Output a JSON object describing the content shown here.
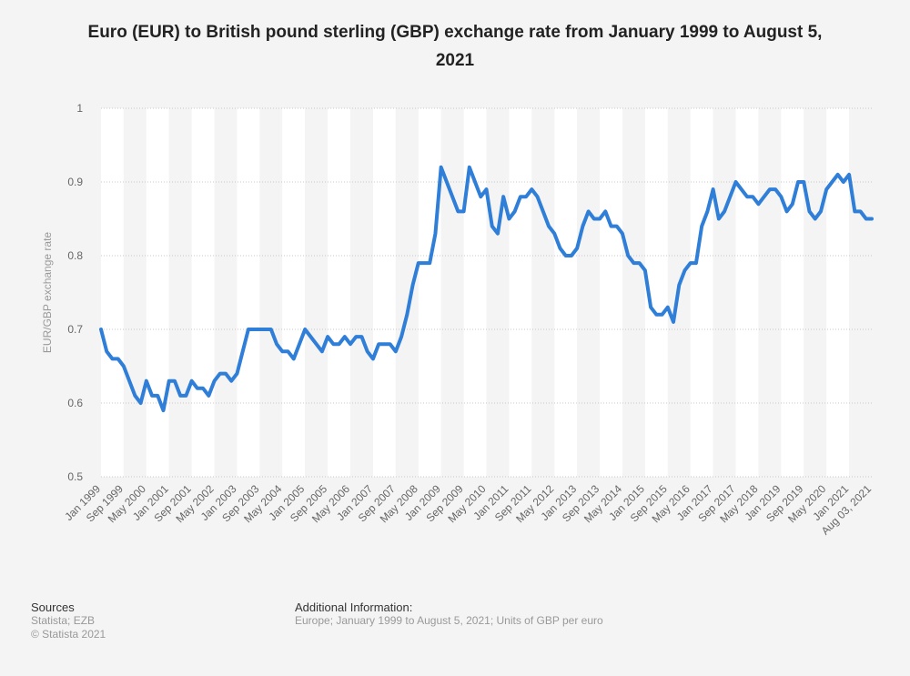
{
  "chart_data": {
    "type": "line",
    "title": "Euro (EUR) to British pound sterling (GBP) exchange rate from January 1999 to August 5, 2021",
    "y_label": "EUR/GBP exchange rate",
    "color": "#2f7ed8",
    "ylim": [
      0.5,
      1
    ],
    "yticks": [
      0.5,
      0.6,
      0.7,
      0.8,
      0.9,
      1
    ],
    "grid": true,
    "categories": [
      "Jan 1999",
      null,
      null,
      null,
      "Sep 1999",
      null,
      null,
      null,
      "May 2000",
      null,
      null,
      null,
      "Jan 2001",
      null,
      null,
      null,
      "Sep 2001",
      null,
      null,
      null,
      "May 2002",
      null,
      null,
      null,
      "Jan 2003",
      null,
      null,
      null,
      "Sep 2003",
      null,
      null,
      null,
      "May 2004",
      null,
      null,
      null,
      "Jan 2005",
      null,
      null,
      null,
      "Sep 2005",
      null,
      null,
      null,
      "May 2006",
      null,
      null,
      null,
      "Jan 2007",
      null,
      null,
      null,
      "Sep 2007",
      null,
      null,
      null,
      "May 2008",
      null,
      null,
      null,
      "Jan 2009",
      null,
      null,
      null,
      "Sep 2009",
      null,
      null,
      null,
      "May 2010",
      null,
      null,
      null,
      "Jan 2011",
      null,
      null,
      null,
      "Sep 2011",
      null,
      null,
      null,
      "May 2012",
      null,
      null,
      null,
      "Jan 2013",
      null,
      null,
      null,
      "Sep 2013",
      null,
      null,
      null,
      "May 2014",
      null,
      null,
      null,
      "Jan 2015",
      null,
      null,
      null,
      "Sep 2015",
      null,
      null,
      null,
      "May 2016",
      null,
      null,
      null,
      "Jan 2017",
      null,
      null,
      null,
      "Sep 2017",
      null,
      null,
      null,
      "May 2018",
      null,
      null,
      null,
      "Jan 2019",
      null,
      null,
      null,
      "Sep 2019",
      null,
      null,
      null,
      "May 2020",
      null,
      null,
      null,
      "Jan 2021",
      null,
      null,
      null,
      "Aug 03, 2021"
    ],
    "values": [
      0.7,
      0.67,
      0.66,
      0.66,
      0.65,
      0.63,
      0.61,
      0.6,
      0.63,
      0.61,
      0.61,
      0.59,
      0.63,
      0.63,
      0.61,
      0.61,
      0.63,
      0.62,
      0.62,
      0.61,
      0.63,
      0.64,
      0.64,
      0.63,
      0.64,
      0.67,
      0.7,
      0.7,
      0.7,
      0.7,
      0.7,
      0.68,
      0.67,
      0.67,
      0.66,
      0.68,
      0.7,
      0.69,
      0.68,
      0.67,
      0.69,
      0.68,
      0.68,
      0.69,
      0.68,
      0.69,
      0.69,
      0.67,
      0.66,
      0.68,
      0.68,
      0.68,
      0.67,
      0.69,
      0.72,
      0.76,
      0.79,
      0.79,
      0.79,
      0.83,
      0.92,
      0.9,
      0.88,
      0.86,
      0.86,
      0.92,
      0.9,
      0.88,
      0.89,
      0.84,
      0.83,
      0.88,
      0.85,
      0.86,
      0.88,
      0.88,
      0.89,
      0.88,
      0.86,
      0.84,
      0.83,
      0.81,
      0.8,
      0.8,
      0.81,
      0.84,
      0.86,
      0.85,
      0.85,
      0.86,
      0.84,
      0.84,
      0.83,
      0.8,
      0.79,
      0.79,
      0.78,
      0.73,
      0.72,
      0.72,
      0.73,
      0.71,
      0.76,
      0.78,
      0.79,
      0.79,
      0.84,
      0.86,
      0.89,
      0.85,
      0.86,
      0.88,
      0.9,
      0.89,
      0.88,
      0.88,
      0.87,
      0.88,
      0.89,
      0.89,
      0.88,
      0.86,
      0.87,
      0.9,
      0.9,
      0.86,
      0.85,
      0.86,
      0.89,
      0.9,
      0.91,
      0.9,
      0.91,
      0.86,
      0.86,
      0.85,
      0.85
    ]
  },
  "footer": {
    "sources_heading": "Sources",
    "sources": "Statista; EZB",
    "copyright": "© Statista 2021",
    "info_heading": "Additional Information:",
    "info": "Europe; January 1999 to August 5, 2021; Units of GBP per euro"
  }
}
